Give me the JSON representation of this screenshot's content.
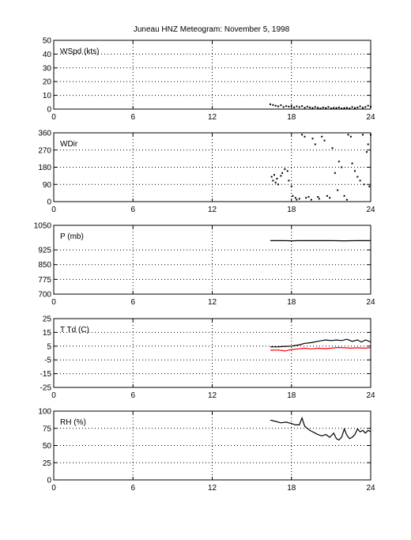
{
  "chart_data": {
    "type": "scatter",
    "title": "Juneau HNZ Meteogram:  November  5, 1998",
    "x_ticks": [
      0,
      6,
      12,
      18,
      24
    ],
    "xlim": [
      0,
      24
    ],
    "grid": true,
    "panels": [
      {
        "label": "WSpd (kts)",
        "ylim": [
          0,
          50
        ],
        "yticks": [
          0,
          10,
          20,
          30,
          40,
          50
        ],
        "series": [
          {
            "color": "#000000",
            "style": "points",
            "x": [
              16.4,
              16.6,
              16.8,
              17.0,
              17.2,
              17.4,
              17.6,
              17.8,
              18.0,
              18.2,
              18.4,
              18.6,
              18.8,
              19.0,
              19.2,
              19.4,
              19.6,
              19.8,
              20.0,
              20.2,
              20.4,
              20.6,
              20.8,
              21.0,
              21.2,
              21.4,
              21.6,
              21.8,
              22.0,
              22.2,
              22.4,
              22.6,
              22.8,
              23.0,
              23.2,
              23.4,
              23.6,
              23.8,
              24.0
            ],
            "y": [
              3.5,
              3.0,
              2.5,
              2.0,
              2.8,
              1.5,
              2.2,
              1.8,
              2.5,
              1.2,
              2.0,
              1.5,
              2.2,
              1.0,
              1.8,
              1.2,
              0.8,
              1.5,
              1.0,
              0.5,
              1.2,
              0.8,
              1.5,
              0.5,
              1.0,
              0.8,
              1.2,
              0.5,
              0.8,
              1.0,
              0.5,
              1.5,
              0.8,
              1.2,
              2.0,
              1.0,
              1.5,
              2.5,
              1.8
            ]
          }
        ]
      },
      {
        "label": "WDir",
        "ylim": [
          0,
          360
        ],
        "yticks": [
          0,
          90,
          180,
          270,
          360
        ],
        "series": [
          {
            "color": "#000000",
            "style": "points",
            "x": [
              16.5,
              16.6,
              16.7,
              16.8,
              16.9,
              17.0,
              17.2,
              17.3,
              17.5,
              17.7,
              17.8,
              18.0,
              18.1,
              18.3,
              18.4,
              18.6,
              18.8,
              19.0,
              19.1,
              19.3,
              19.5,
              19.6,
              19.8,
              20.0,
              20.1,
              20.3,
              20.5,
              20.7,
              20.9,
              21.1,
              21.3,
              21.5,
              21.6,
              21.8,
              22.0,
              22.2,
              22.3,
              22.5,
              22.6,
              22.8,
              23.0,
              23.2,
              23.4,
              23.5,
              23.7,
              23.8,
              23.9,
              24.0
            ],
            "y": [
              130,
              110,
              140,
              100,
              120,
              90,
              135,
              150,
              170,
              160,
              110,
              80,
              30,
              20,
              10,
              15,
              350,
              340,
              20,
              25,
              10,
              330,
              300,
              25,
              15,
              340,
              320,
              30,
              20,
              280,
              150,
              60,
              210,
              180,
              30,
              10,
              350,
              340,
              200,
              160,
              130,
              110,
              350,
              90,
              260,
              300,
              80,
              350
            ]
          }
        ]
      },
      {
        "label": "P (mb)",
        "ylim": [
          700,
          1050
        ],
        "yticks": [
          700,
          775,
          850,
          925,
          1050
        ],
        "series": [
          {
            "color": "#000000",
            "style": "line",
            "x": [
              16.4,
              17.0,
              17.5,
              18.0,
              18.5,
              19.0,
              20.0,
              21.0,
              22.0,
              23.0,
              24.0
            ],
            "y": [
              972,
              972,
              972,
              971,
              972,
              972,
              972,
              972,
              971,
              972,
              972
            ]
          }
        ]
      },
      {
        "label": "T Td (C)",
        "ylim": [
          -25,
          25
        ],
        "yticks": [
          -25,
          -15,
          -5,
          5,
          15,
          25
        ],
        "series": [
          {
            "color": "#000000",
            "style": "line",
            "x": [
              16.4,
              17.0,
              17.5,
              18.0,
              18.3,
              18.6,
              19.0,
              19.5,
              20.0,
              20.3,
              20.6,
              21.0,
              21.4,
              21.8,
              22.2,
              22.6,
              23.0,
              23.3,
              23.6,
              24.0
            ],
            "y": [
              4.5,
              4.5,
              4.8,
              5.0,
              5.5,
              6.0,
              7.0,
              7.5,
              8.5,
              9.0,
              9.5,
              9.0,
              9.5,
              9.0,
              10.0,
              8.5,
              9.5,
              8.0,
              9.5,
              8.0
            ]
          },
          {
            "color": "#ff0000",
            "style": "line",
            "x": [
              16.4,
              17.0,
              17.5,
              18.0,
              18.5,
              19.0,
              19.5,
              20.0,
              20.5,
              21.0,
              21.5,
              22.0,
              22.5,
              23.0,
              23.5,
              24.0
            ],
            "y": [
              2.0,
              2.2,
              1.5,
              2.5,
              3.0,
              3.5,
              3.0,
              3.5,
              3.2,
              3.5,
              4.0,
              3.8,
              3.5,
              3.8,
              3.5,
              3.8
            ]
          }
        ]
      },
      {
        "label": "RH (%)",
        "ylim": [
          0,
          100
        ],
        "yticks": [
          0,
          25,
          50,
          75,
          100
        ],
        "series": [
          {
            "color": "#000000",
            "style": "line",
            "x": [
              16.4,
              16.8,
              17.2,
              17.6,
              18.0,
              18.3,
              18.6,
              18.8,
              19.0,
              19.2,
              19.4,
              19.6,
              19.8,
              20.0,
              20.3,
              20.6,
              20.9,
              21.2,
              21.4,
              21.6,
              21.8,
              22.0,
              22.2,
              22.4,
              22.6,
              22.8,
              23.0,
              23.2,
              23.4,
              23.6,
              23.8,
              24.0
            ],
            "y": [
              87,
              85,
              83,
              84,
              82,
              80,
              80,
              90,
              78,
              75,
              72,
              70,
              68,
              66,
              64,
              66,
              62,
              68,
              60,
              58,
              62,
              74,
              65,
              60,
              62,
              66,
              74,
              70,
              72,
              68,
              72,
              70
            ]
          }
        ]
      }
    ]
  }
}
